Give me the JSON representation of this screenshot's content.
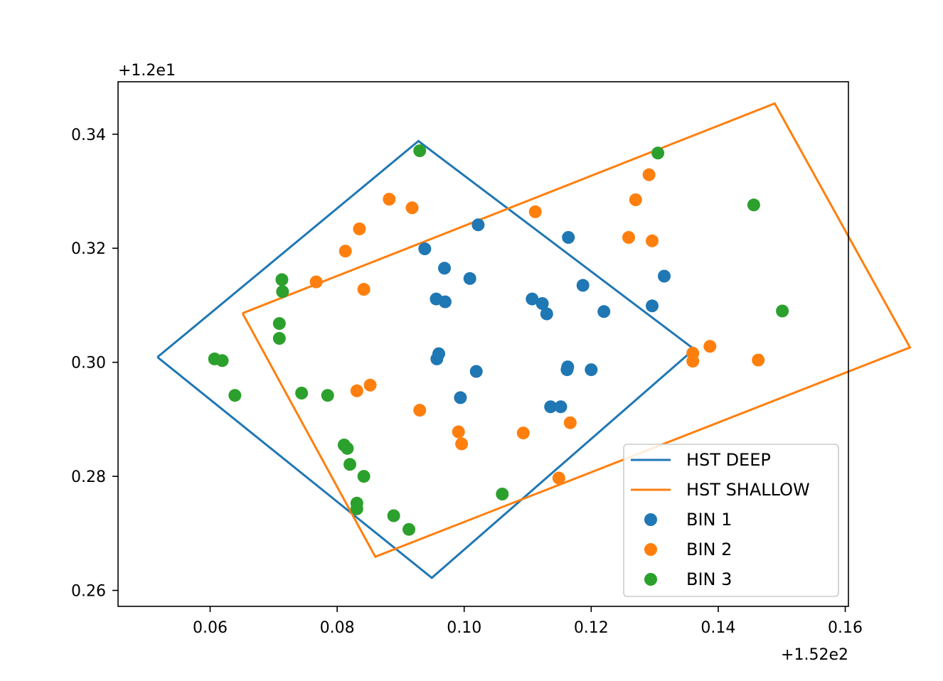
{
  "chart_data": {
    "type": "scatter",
    "x_offset_label": "+1.52e2",
    "y_offset_label": "+1.2e1",
    "x_offset": 152,
    "y_offset": 12,
    "xlim": [
      0.0455,
      0.1605
    ],
    "ylim": [
      0.2572,
      0.3492
    ],
    "x_ticks": [
      0.06,
      0.08,
      0.1,
      0.12,
      0.14,
      0.16
    ],
    "x_tick_labels": [
      "0.06",
      "0.08",
      "0.10",
      "0.12",
      "0.14",
      "0.16"
    ],
    "y_ticks": [
      0.26,
      0.28,
      0.3,
      0.32,
      0.34
    ],
    "y_tick_labels": [
      "0.26",
      "0.28",
      "0.30",
      "0.32",
      "0.34"
    ],
    "grid": false,
    "legend_position": "bottom-right",
    "outlines": [
      {
        "name": "HST DEEP",
        "color": "#1f77b4",
        "points": [
          [
            0.0517,
            0.3009
          ],
          [
            0.0928,
            0.3388
          ],
          [
            0.1362,
            0.3023
          ],
          [
            0.0949,
            0.2622
          ],
          [
            0.0517,
            0.3009
          ]
        ]
      },
      {
        "name": "HST SHALLOW",
        "color": "#ff7f0e",
        "points": [
          [
            0.0651,
            0.3086
          ],
          [
            0.1489,
            0.3454
          ],
          [
            0.1702,
            0.3026
          ],
          [
            0.086,
            0.2659
          ],
          [
            0.0651,
            0.3086
          ]
        ]
      }
    ],
    "series": [
      {
        "name": "BIN 1",
        "color": "#1f77b4",
        "points": [
          [
            0.1022,
            0.3241
          ],
          [
            0.1164,
            0.3219
          ],
          [
            0.0938,
            0.3199
          ],
          [
            0.0969,
            0.3165
          ],
          [
            0.1009,
            0.3147
          ],
          [
            0.1187,
            0.3135
          ],
          [
            0.1315,
            0.3151
          ],
          [
            0.0956,
            0.3111
          ],
          [
            0.097,
            0.3106
          ],
          [
            0.1107,
            0.3111
          ],
          [
            0.1123,
            0.3103
          ],
          [
            0.113,
            0.3085
          ],
          [
            0.122,
            0.3089
          ],
          [
            0.1296,
            0.3099
          ],
          [
            0.096,
            0.3015
          ],
          [
            0.0957,
            0.3006
          ],
          [
            0.1019,
            0.2984
          ],
          [
            0.1163,
            0.2992
          ],
          [
            0.1162,
            0.2987
          ],
          [
            0.12,
            0.2987
          ],
          [
            0.0994,
            0.2938
          ],
          [
            0.1136,
            0.2922
          ],
          [
            0.1152,
            0.2922
          ]
        ]
      },
      {
        "name": "BIN 2",
        "color": "#ff7f0e",
        "points": [
          [
            0.1291,
            0.3329
          ],
          [
            0.0882,
            0.3286
          ],
          [
            0.0918,
            0.3271
          ],
          [
            0.127,
            0.3285
          ],
          [
            0.1112,
            0.3264
          ],
          [
            0.0835,
            0.3234
          ],
          [
            0.1259,
            0.3219
          ],
          [
            0.1296,
            0.3213
          ],
          [
            0.0813,
            0.3195
          ],
          [
            0.0767,
            0.3141
          ],
          [
            0.0842,
            0.3128
          ],
          [
            0.136,
            0.3016
          ],
          [
            0.136,
            0.3002
          ],
          [
            0.1387,
            0.3028
          ],
          [
            0.1463,
            0.3004
          ],
          [
            0.0852,
            0.296
          ],
          [
            0.0831,
            0.295
          ],
          [
            0.093,
            0.2916
          ],
          [
            0.0991,
            0.2878
          ],
          [
            0.0996,
            0.2857
          ],
          [
            0.1093,
            0.2876
          ],
          [
            0.1167,
            0.2894
          ],
          [
            0.1149,
            0.2797
          ]
        ]
      },
      {
        "name": "BIN 3",
        "color": "#2ca02c",
        "points": [
          [
            0.093,
            0.3371
          ],
          [
            0.1305,
            0.3367
          ],
          [
            0.1456,
            0.3276
          ],
          [
            0.0713,
            0.3145
          ],
          [
            0.0714,
            0.3124
          ],
          [
            0.1501,
            0.309
          ],
          [
            0.0709,
            0.3068
          ],
          [
            0.0709,
            0.3042
          ],
          [
            0.0607,
            0.3006
          ],
          [
            0.0619,
            0.3003
          ],
          [
            0.0639,
            0.2942
          ],
          [
            0.0744,
            0.2946
          ],
          [
            0.0785,
            0.2942
          ],
          [
            0.0811,
            0.2855
          ],
          [
            0.0816,
            0.2849
          ],
          [
            0.082,
            0.2821
          ],
          [
            0.0842,
            0.28
          ],
          [
            0.0831,
            0.2753
          ],
          [
            0.0831,
            0.2743
          ],
          [
            0.0889,
            0.2731
          ],
          [
            0.0913,
            0.2707
          ],
          [
            0.106,
            0.2769
          ]
        ]
      }
    ]
  }
}
